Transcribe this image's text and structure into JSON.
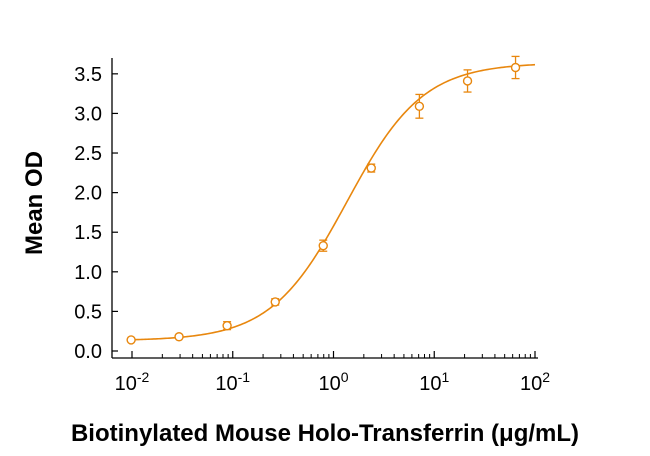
{
  "chart_data": {
    "type": "scatter",
    "xlabel": "Biotinylated Mouse Holo-Transferrin (μg/mL)",
    "ylabel": "Mean OD",
    "x_scale": "log",
    "xlim": [
      0.01,
      100
    ],
    "ylim": [
      0,
      3.7
    ],
    "x_ticks": [
      {
        "base": "10",
        "exp": "-2",
        "value": 0.01
      },
      {
        "base": "10",
        "exp": "-1",
        "value": 0.1
      },
      {
        "base": "10",
        "exp": "0",
        "value": 1
      },
      {
        "base": "10",
        "exp": "1",
        "value": 10
      },
      {
        "base": "10",
        "exp": "2",
        "value": 100
      }
    ],
    "y_ticks": [
      {
        "label": "0.0",
        "value": 0.0
      },
      {
        "label": "0.5",
        "value": 0.5
      },
      {
        "label": "1.0",
        "value": 1.0
      },
      {
        "label": "1.5",
        "value": 1.5
      },
      {
        "label": "2.0",
        "value": 2.0
      },
      {
        "label": "2.5",
        "value": 2.5
      },
      {
        "label": "3.0",
        "value": 3.0
      },
      {
        "label": "3.5",
        "value": 3.5
      }
    ],
    "grid": false,
    "color": "#E8870E",
    "series": [
      {
        "x": [
          0.0098,
          0.0293,
          0.0879,
          0.264,
          0.791,
          2.37,
          7.12,
          21.4,
          64.1
        ],
        "y": [
          0.14,
          0.18,
          0.32,
          0.62,
          1.33,
          2.31,
          3.09,
          3.41,
          3.58
        ],
        "error": [
          0.02,
          0.02,
          0.05,
          0.04,
          0.07,
          0.05,
          0.15,
          0.14,
          0.14
        ]
      }
    ],
    "fit_curve": {
      "model": "4PL",
      "bottom": 0.13,
      "top": 3.64,
      "ec50": 1.36,
      "hill": 1.15
    }
  }
}
